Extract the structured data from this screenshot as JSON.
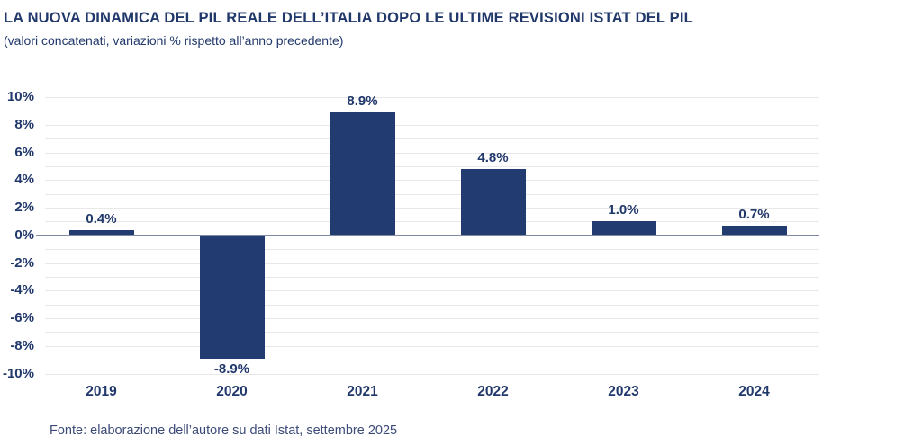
{
  "title": "LA NUOVA DINAMICA DEL PIL REALE DELL’ITALIA DOPO LE ULTIME REVISIONI ISTAT DEL PIL",
  "subtitle": "(valori concatenati, variazioni % rispetto all’anno precedente)",
  "source_note": "Fonte: elaborazione dell’autore su dati Istat, settembre 2025",
  "colors": {
    "text_navy": "#21386B",
    "bar_fill": "#223C72",
    "grid_line": "#E8E8E8",
    "zero_line": "#7E8BA3",
    "footer_text": "#3C4B78",
    "background": "#FFFFFF"
  },
  "chart_data": {
    "type": "bar",
    "title": "LA NUOVA DINAMICA DEL PIL REALE DELL’ITALIA DOPO LE ULTIME REVISIONI ISTAT DEL PIL",
    "subtitle": "(valori concatenati, variazioni % rispetto all’anno precedente)",
    "categories": [
      "2019",
      "2020",
      "2021",
      "2022",
      "2023",
      "2024"
    ],
    "values": [
      0.4,
      -8.9,
      8.9,
      4.8,
      1.0,
      0.7
    ],
    "value_labels": [
      "0.4%",
      "-8.9%",
      "8.9%",
      "4.8%",
      "1.0%",
      "0.7%"
    ],
    "xlabel": "",
    "ylabel": "",
    "ylim": [
      -10,
      10
    ],
    "grid": true,
    "grid_step": 1,
    "legend_position": "none",
    "yticks": [
      {
        "value": 10,
        "label": "10%"
      },
      {
        "value": 8,
        "label": "8%"
      },
      {
        "value": 6,
        "label": "6%"
      },
      {
        "value": 4,
        "label": "4%"
      },
      {
        "value": 2,
        "label": "2%"
      },
      {
        "value": 0,
        "label": "0%"
      },
      {
        "value": -2,
        "label": "-2%"
      },
      {
        "value": -4,
        "label": "-4%"
      },
      {
        "value": -6,
        "label": "-6%"
      },
      {
        "value": -8,
        "label": "-8%"
      },
      {
        "value": -10,
        "label": "-10%"
      }
    ]
  }
}
